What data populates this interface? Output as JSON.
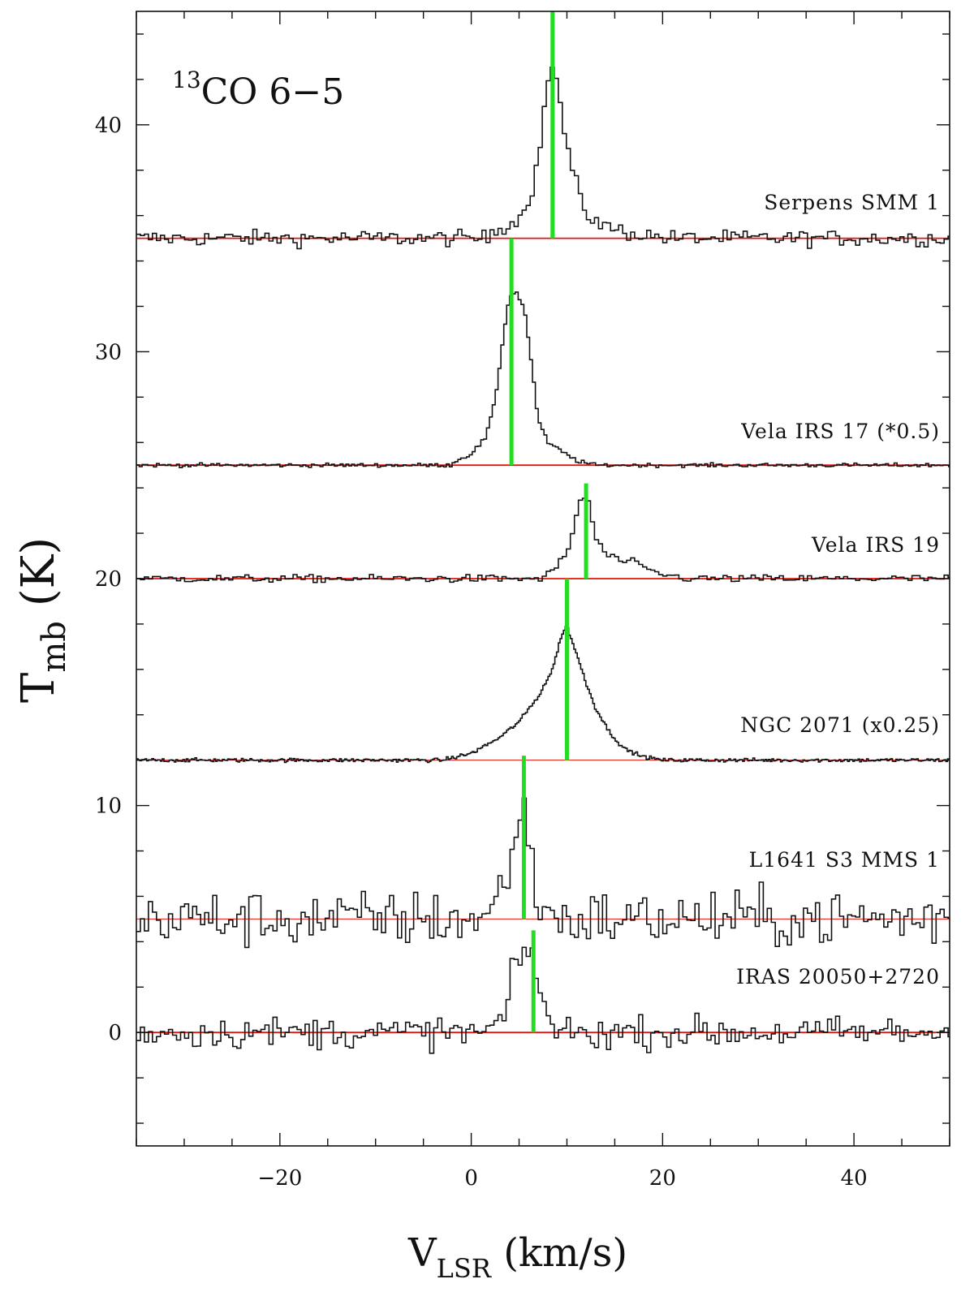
{
  "chart_data": {
    "type": "line",
    "title": {
      "sup": "13",
      "main": "CO 6−5"
    },
    "xlabel": {
      "main": "V",
      "sub": "LSR",
      "rest": " (km/s)"
    },
    "ylabel": {
      "main": "T",
      "sub": "mb",
      "rest": " (K)"
    },
    "xlim": [
      -35,
      50
    ],
    "ylim": [
      -5,
      45
    ],
    "x_ticks_major": [
      -20,
      0,
      20,
      40
    ],
    "x_ticks_minor_step": 5,
    "y_ticks_major": [
      0,
      10,
      20,
      30,
      40
    ],
    "y_ticks_minor_step": 2,
    "grid": false,
    "series": [
      {
        "name": "Serpens SMM 1",
        "baseline": 35,
        "line_velocity": 8.5,
        "line_top": 45,
        "peak": 7.7,
        "profile": [
          [
            2,
            0.3
          ],
          [
            5,
            0.8
          ],
          [
            6.5,
            2.3
          ],
          [
            7.5,
            5.0
          ],
          [
            8.2,
            7.7
          ],
          [
            8.8,
            7.3
          ],
          [
            9.5,
            5.3
          ],
          [
            10.5,
            3.0
          ],
          [
            12,
            1.1
          ],
          [
            14,
            0.5
          ],
          [
            17,
            0.2
          ],
          [
            21,
            0.0
          ]
        ],
        "noise": 0.25
      },
      {
        "name": "Vela IRS 17 (*0.5)",
        "baseline": 25,
        "line_velocity": 4.2,
        "line_top": 35,
        "peak": 7.7,
        "profile": [
          [
            -2,
            0.1
          ],
          [
            0,
            0.5
          ],
          [
            1.5,
            1.2
          ],
          [
            2.5,
            2.8
          ],
          [
            3.3,
            5.5
          ],
          [
            4,
            7.5
          ],
          [
            4.8,
            7.6
          ],
          [
            5.6,
            6.8
          ],
          [
            6.3,
            4.5
          ],
          [
            7,
            2.0
          ],
          [
            8,
            1.0
          ],
          [
            9.5,
            0.6
          ],
          [
            11,
            0.2
          ],
          [
            13,
            0.0
          ]
        ],
        "noise": 0.06
      },
      {
        "name": "Vela IRS 19",
        "baseline": 20,
        "line_velocity": 12.0,
        "line_top": 24.2,
        "peak": 3.6,
        "profile": [
          [
            8,
            0.2
          ],
          [
            10,
            1.0
          ],
          [
            11,
            2.8
          ],
          [
            11.5,
            3.6
          ],
          [
            12.2,
            3.5
          ],
          [
            13,
            1.8
          ],
          [
            14,
            1.1
          ],
          [
            15.5,
            0.8
          ],
          [
            17,
            0.7
          ],
          [
            19,
            0.3
          ],
          [
            21,
            0.1
          ],
          [
            23,
            0.0
          ]
        ],
        "noise": 0.12
      },
      {
        "name": "NGC 2071 (x0.25)",
        "baseline": 12,
        "line_velocity": 10.0,
        "line_top": 20,
        "peak": 5.9,
        "profile": [
          [
            -3,
            0.0
          ],
          [
            0,
            0.3
          ],
          [
            3,
            1.0
          ],
          [
            5,
            1.7
          ],
          [
            7,
            2.8
          ],
          [
            8.5,
            4.0
          ],
          [
            9.5,
            5.6
          ],
          [
            10,
            5.9
          ],
          [
            11,
            4.7
          ],
          [
            12,
            3.4
          ],
          [
            13,
            2.3
          ],
          [
            14.5,
            1.2
          ],
          [
            16,
            0.5
          ],
          [
            18,
            0.15
          ],
          [
            20,
            0.0
          ]
        ],
        "noise": 0.06
      },
      {
        "name": "L1641 S3 MMS 1",
        "baseline": 5,
        "line_velocity": 5.5,
        "line_top": 12.2,
        "peak": 4.9,
        "profile": [
          [
            2,
            0.4
          ],
          [
            3.5,
            1.5
          ],
          [
            4.5,
            3.7
          ],
          [
            5.5,
            4.9
          ],
          [
            6.5,
            1.7
          ],
          [
            7.5,
            0.5
          ],
          [
            9,
            0.0
          ]
        ],
        "noise": 0.9
      },
      {
        "name": "IRAS 20050+2720",
        "baseline": 0,
        "line_velocity": 6.5,
        "line_top": 4.5,
        "peak": 3.6,
        "profile": [
          [
            2,
            0.2
          ],
          [
            3.5,
            0.7
          ],
          [
            4.5,
            2.7
          ],
          [
            5.5,
            3.6
          ],
          [
            6.5,
            3.3
          ],
          [
            7.2,
            2.0
          ],
          [
            8,
            0.6
          ],
          [
            9,
            0.1
          ],
          [
            10,
            0.0
          ]
        ],
        "noise": 0.5
      }
    ]
  },
  "colors": {
    "spectrum": "#111111",
    "baseline": "#e8120c",
    "velocity_marker": "#22dd22",
    "frame": "#111111"
  }
}
